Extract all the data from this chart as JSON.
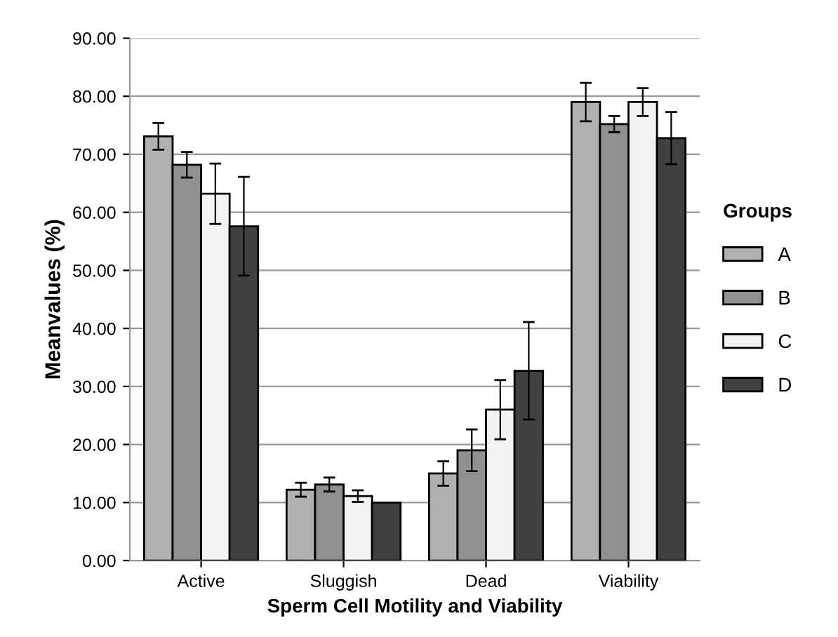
{
  "chart_data": {
    "type": "bar",
    "xlabel": "Sperm Cell Motility and Viability",
    "ylabel": "Meanvalues (%)",
    "legend_title": "Groups",
    "legend": "right",
    "grid": "y",
    "categories": [
      "Active",
      "Sluggish",
      "Dead",
      "Viability"
    ],
    "ylim": [
      0,
      90
    ],
    "yticks": [
      {
        "value": 0,
        "label": "0.00"
      },
      {
        "value": 10,
        "label": "10.00"
      },
      {
        "value": 20,
        "label": "20.00"
      },
      {
        "value": 30,
        "label": "30.00"
      },
      {
        "value": 40,
        "label": "40.00"
      },
      {
        "value": 50,
        "label": "50.00"
      },
      {
        "value": 60,
        "label": "60.00"
      },
      {
        "value": 70,
        "label": "70.00"
      },
      {
        "value": 80,
        "label": "80.00"
      },
      {
        "value": 90,
        "label": "90.00"
      }
    ],
    "series": [
      {
        "name": "A",
        "color": "#b0b0b0",
        "values": [
          73.1,
          12.2,
          15.0,
          79.0
        ],
        "errors": [
          2.3,
          1.2,
          2.1,
          3.3
        ]
      },
      {
        "name": "B",
        "color": "#909090",
        "values": [
          68.2,
          13.1,
          19.0,
          75.2
        ],
        "errors": [
          2.2,
          1.2,
          3.6,
          1.4
        ]
      },
      {
        "name": "C",
        "color": "#f2f2f2",
        "values": [
          63.2,
          11.1,
          26.0,
          79.0
        ],
        "errors": [
          5.2,
          1.0,
          5.1,
          2.4
        ]
      },
      {
        "name": "D",
        "color": "#404040",
        "values": [
          57.6,
          10.0,
          32.7,
          72.8
        ],
        "errors": [
          8.5,
          null,
          8.4,
          4.5
        ]
      }
    ]
  }
}
